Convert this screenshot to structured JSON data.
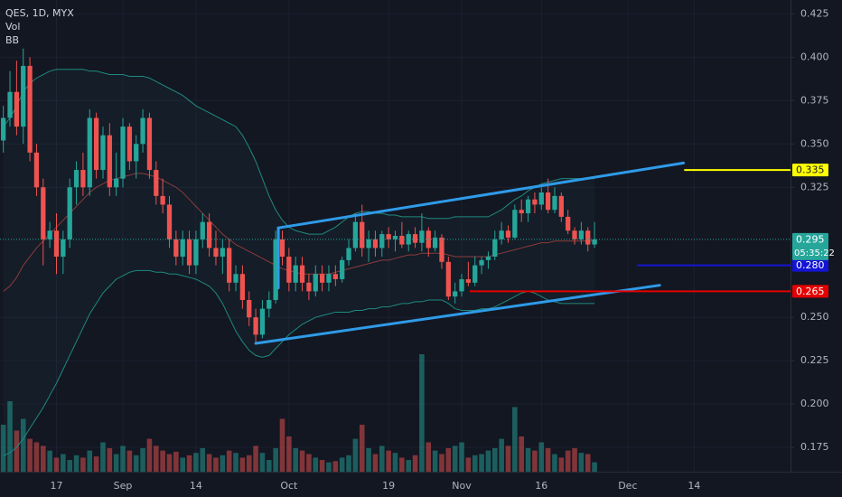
{
  "chart_data": {
    "type": "candlestick",
    "title": "QES, 1D, MYX",
    "indicators": [
      "Vol",
      "BB"
    ],
    "x": [
      0,
      1,
      2,
      3,
      4,
      5,
      6,
      7,
      8,
      9,
      10,
      11,
      12,
      13,
      14,
      15,
      16,
      17,
      18,
      19,
      20,
      21,
      22,
      23,
      24,
      25,
      26,
      27,
      28,
      29,
      30,
      31,
      32,
      33,
      34,
      35,
      36,
      37,
      38,
      39,
      40,
      41,
      42,
      43,
      44,
      45,
      46,
      47,
      48,
      49,
      50,
      51,
      52,
      53,
      54,
      55,
      56,
      57,
      58,
      59,
      60,
      61,
      62,
      63,
      64,
      65,
      66,
      67,
      68,
      69,
      70,
      71,
      72,
      73,
      74,
      75,
      76,
      77,
      78,
      79,
      80,
      81,
      82,
      83,
      84,
      85,
      86,
      87,
      88,
      89
    ],
    "open": [
      0.352,
      0.365,
      0.38,
      0.36,
      0.395,
      0.345,
      0.325,
      0.295,
      0.3,
      0.285,
      0.295,
      0.325,
      0.335,
      0.325,
      0.365,
      0.335,
      0.355,
      0.325,
      0.33,
      0.36,
      0.34,
      0.35,
      0.365,
      0.335,
      0.32,
      0.315,
      0.295,
      0.285,
      0.295,
      0.28,
      0.295,
      0.305,
      0.29,
      0.285,
      0.29,
      0.27,
      0.275,
      0.26,
      0.25,
      0.24,
      0.255,
      0.26,
      0.295,
      0.285,
      0.27,
      0.28,
      0.27,
      0.265,
      0.275,
      0.27,
      0.275,
      0.272,
      0.283,
      0.29,
      0.305,
      0.29,
      0.295,
      0.29,
      0.298,
      0.295,
      0.297,
      0.292,
      0.298,
      0.293,
      0.3,
      0.29,
      0.296,
      0.282,
      0.262,
      0.265,
      0.272,
      0.27,
      0.28,
      0.283,
      0.285,
      0.295,
      0.3,
      0.296,
      0.312,
      0.31,
      0.318,
      0.315,
      0.322,
      0.312,
      0.32,
      0.308,
      0.3,
      0.295,
      0.3,
      0.292
    ],
    "high": [
      0.372,
      0.392,
      0.398,
      0.405,
      0.4,
      0.35,
      0.33,
      0.305,
      0.31,
      0.3,
      0.33,
      0.34,
      0.345,
      0.37,
      0.368,
      0.36,
      0.362,
      0.345,
      0.365,
      0.362,
      0.355,
      0.37,
      0.368,
      0.34,
      0.33,
      0.32,
      0.3,
      0.3,
      0.3,
      0.3,
      0.31,
      0.31,
      0.3,
      0.295,
      0.295,
      0.28,
      0.28,
      0.265,
      0.255,
      0.26,
      0.265,
      0.3,
      0.3,
      0.29,
      0.285,
      0.285,
      0.275,
      0.28,
      0.28,
      0.28,
      0.28,
      0.285,
      0.295,
      0.31,
      0.315,
      0.3,
      0.3,
      0.3,
      0.302,
      0.3,
      0.305,
      0.3,
      0.302,
      0.31,
      0.302,
      0.3,
      0.298,
      0.285,
      0.27,
      0.275,
      0.282,
      0.285,
      0.285,
      0.288,
      0.3,
      0.305,
      0.303,
      0.315,
      0.318,
      0.32,
      0.322,
      0.325,
      0.33,
      0.325,
      0.322,
      0.312,
      0.302,
      0.305,
      0.302,
      0.305
    ],
    "low": [
      0.345,
      0.36,
      0.355,
      0.35,
      0.34,
      0.32,
      0.28,
      0.29,
      0.275,
      0.275,
      0.29,
      0.315,
      0.32,
      0.32,
      0.33,
      0.33,
      0.32,
      0.32,
      0.325,
      0.335,
      0.33,
      0.345,
      0.33,
      0.315,
      0.31,
      0.29,
      0.28,
      0.28,
      0.275,
      0.275,
      0.29,
      0.285,
      0.28,
      0.275,
      0.265,
      0.265,
      0.255,
      0.245,
      0.235,
      0.238,
      0.25,
      0.258,
      0.28,
      0.265,
      0.265,
      0.265,
      0.26,
      0.262,
      0.265,
      0.265,
      0.268,
      0.27,
      0.28,
      0.288,
      0.285,
      0.282,
      0.285,
      0.285,
      0.29,
      0.288,
      0.29,
      0.288,
      0.29,
      0.288,
      0.285,
      0.288,
      0.278,
      0.26,
      0.258,
      0.262,
      0.268,
      0.268,
      0.275,
      0.278,
      0.283,
      0.292,
      0.293,
      0.295,
      0.305,
      0.305,
      0.31,
      0.312,
      0.31,
      0.31,
      0.305,
      0.298,
      0.292,
      0.292,
      0.288,
      0.29
    ],
    "close": [
      0.365,
      0.38,
      0.36,
      0.395,
      0.345,
      0.325,
      0.295,
      0.3,
      0.285,
      0.295,
      0.325,
      0.335,
      0.325,
      0.365,
      0.335,
      0.355,
      0.325,
      0.33,
      0.36,
      0.34,
      0.35,
      0.365,
      0.335,
      0.32,
      0.315,
      0.295,
      0.285,
      0.295,
      0.28,
      0.295,
      0.305,
      0.29,
      0.285,
      0.29,
      0.27,
      0.275,
      0.26,
      0.25,
      0.24,
      0.255,
      0.26,
      0.295,
      0.285,
      0.27,
      0.28,
      0.27,
      0.265,
      0.275,
      0.27,
      0.275,
      0.272,
      0.283,
      0.29,
      0.305,
      0.29,
      0.295,
      0.29,
      0.298,
      0.295,
      0.297,
      0.292,
      0.298,
      0.293,
      0.3,
      0.29,
      0.296,
      0.282,
      0.262,
      0.265,
      0.272,
      0.27,
      0.28,
      0.283,
      0.285,
      0.295,
      0.3,
      0.296,
      0.312,
      0.31,
      0.318,
      0.315,
      0.322,
      0.312,
      0.32,
      0.308,
      0.3,
      0.295,
      0.3,
      0.292,
      0.295
    ],
    "volume": [
      40,
      60,
      35,
      45,
      28,
      25,
      22,
      18,
      12,
      15,
      10,
      14,
      12,
      18,
      13,
      25,
      20,
      15,
      22,
      18,
      14,
      20,
      28,
      22,
      18,
      15,
      17,
      12,
      14,
      16,
      20,
      15,
      12,
      14,
      18,
      16,
      12,
      14,
      22,
      16,
      10,
      20,
      45,
      30,
      20,
      18,
      15,
      12,
      10,
      8,
      9,
      12,
      14,
      28,
      40,
      20,
      15,
      22,
      18,
      16,
      12,
      10,
      14,
      100,
      25,
      18,
      15,
      20,
      22,
      25,
      12,
      14,
      15,
      18,
      20,
      28,
      22,
      55,
      30,
      20,
      18,
      25,
      20,
      15,
      12,
      18,
      20,
      16,
      15,
      8
    ],
    "bb_upper": [
      0.36,
      0.365,
      0.372,
      0.38,
      0.385,
      0.388,
      0.39,
      0.392,
      0.393,
      0.393,
      0.393,
      0.393,
      0.393,
      0.392,
      0.392,
      0.391,
      0.39,
      0.39,
      0.39,
      0.389,
      0.389,
      0.389,
      0.388,
      0.386,
      0.384,
      0.382,
      0.38,
      0.378,
      0.375,
      0.372,
      0.37,
      0.368,
      0.366,
      0.364,
      0.362,
      0.36,
      0.355,
      0.348,
      0.34,
      0.33,
      0.32,
      0.312,
      0.306,
      0.302,
      0.3,
      0.299,
      0.298,
      0.298,
      0.298,
      0.3,
      0.302,
      0.305,
      0.308,
      0.31,
      0.311,
      0.311,
      0.31,
      0.31,
      0.309,
      0.309,
      0.308,
      0.308,
      0.308,
      0.308,
      0.307,
      0.307,
      0.307,
      0.307,
      0.308,
      0.308,
      0.308,
      0.308,
      0.308,
      0.308,
      0.31,
      0.312,
      0.315,
      0.318,
      0.32,
      0.323,
      0.325,
      0.327,
      0.328,
      0.329,
      0.33,
      0.33,
      0.33,
      0.33,
      0.33,
      0.33
    ],
    "bb_basis": [
      0.265,
      0.268,
      0.273,
      0.28,
      0.285,
      0.29,
      0.294,
      0.298,
      0.302,
      0.306,
      0.31,
      0.314,
      0.318,
      0.322,
      0.325,
      0.327,
      0.329,
      0.33,
      0.331,
      0.332,
      0.333,
      0.333,
      0.332,
      0.331,
      0.329,
      0.327,
      0.325,
      0.322,
      0.318,
      0.314,
      0.31,
      0.306,
      0.302,
      0.298,
      0.295,
      0.292,
      0.29,
      0.288,
      0.286,
      0.284,
      0.282,
      0.28,
      0.278,
      0.277,
      0.276,
      0.275,
      0.275,
      0.275,
      0.275,
      0.275,
      0.276,
      0.277,
      0.278,
      0.279,
      0.28,
      0.281,
      0.282,
      0.283,
      0.283,
      0.284,
      0.285,
      0.286,
      0.286,
      0.287,
      0.287,
      0.287,
      0.287,
      0.286,
      0.285,
      0.285,
      0.285,
      0.285,
      0.285,
      0.285,
      0.286,
      0.287,
      0.288,
      0.289,
      0.29,
      0.291,
      0.292,
      0.293,
      0.293,
      0.294,
      0.294,
      0.294,
      0.294,
      0.294,
      0.294,
      0.294
    ],
    "bb_lower": [
      0.17,
      0.172,
      0.175,
      0.18,
      0.186,
      0.192,
      0.198,
      0.205,
      0.212,
      0.22,
      0.228,
      0.236,
      0.244,
      0.252,
      0.258,
      0.264,
      0.268,
      0.272,
      0.274,
      0.276,
      0.277,
      0.277,
      0.277,
      0.276,
      0.276,
      0.275,
      0.275,
      0.274,
      0.273,
      0.272,
      0.27,
      0.268,
      0.264,
      0.258,
      0.25,
      0.242,
      0.236,
      0.231,
      0.228,
      0.227,
      0.228,
      0.232,
      0.236,
      0.24,
      0.243,
      0.246,
      0.248,
      0.25,
      0.251,
      0.252,
      0.253,
      0.253,
      0.253,
      0.254,
      0.254,
      0.255,
      0.255,
      0.256,
      0.256,
      0.257,
      0.258,
      0.258,
      0.259,
      0.259,
      0.26,
      0.26,
      0.26,
      0.258,
      0.255,
      0.254,
      0.254,
      0.254,
      0.255,
      0.255,
      0.256,
      0.258,
      0.26,
      0.262,
      0.264,
      0.265,
      0.264,
      0.262,
      0.26,
      0.259,
      0.258,
      0.258,
      0.258,
      0.258,
      0.258,
      0.258
    ],
    "up_color": "#26a69a",
    "down_color": "#ef5350",
    "xlim": [
      -0.5,
      118.5
    ],
    "xticks": [
      {
        "value": 8,
        "label": "17"
      },
      {
        "value": 18,
        "label": "Sep"
      },
      {
        "value": 29,
        "label": "14"
      },
      {
        "value": 43,
        "label": "Oct"
      },
      {
        "value": 58,
        "label": "19"
      },
      {
        "value": 69,
        "label": "Nov"
      },
      {
        "value": 81,
        "label": "16"
      },
      {
        "value": 94,
        "label": "Dec"
      },
      {
        "value": 104,
        "label": "14"
      }
    ],
    "ylim": [
      0.161,
      0.433
    ],
    "yticks": [
      {
        "value": 0.425,
        "label": "0.425"
      },
      {
        "value": 0.4,
        "label": "0.400"
      },
      {
        "value": 0.375,
        "label": "0.375"
      },
      {
        "value": 0.35,
        "label": "0.350"
      },
      {
        "value": 0.325,
        "label": "0.325"
      },
      {
        "value": 0.25,
        "label": "0.250"
      },
      {
        "value": 0.225,
        "label": "0.225"
      },
      {
        "value": 0.2,
        "label": "0.200"
      },
      {
        "value": 0.175,
        "label": "0.175"
      }
    ],
    "trendlines": [
      {
        "x": [
          41.4,
          102.4
        ],
        "y": [
          0.3016,
          0.339
        ],
        "color": "#2f9be8"
      },
      {
        "x": [
          38,
          98.8
        ],
        "y": [
          0.235,
          0.2685
        ],
        "color": "#2f9be8"
      },
      {
        "x": [
          41.4,
          41.4
        ],
        "y": [
          0.3016,
          0.267
        ],
        "color": "#2f9be8"
      }
    ],
    "hlines": [
      {
        "value": 0.335,
        "label": "0.335",
        "start": 102.5,
        "color": "#ffff00",
        "text_color": "#131722"
      },
      {
        "value": 0.28,
        "label": "0.280",
        "start": 95.4,
        "color": "#1414d6",
        "text_color": "#ffffff"
      },
      {
        "value": 0.265,
        "label": "0.265",
        "start": 70.2,
        "color": "#e50000",
        "text_color": "#ffffff"
      }
    ],
    "last_price": {
      "value": 0.295,
      "label": "0.295",
      "color": "#26a69a",
      "countdown": "05:35:22"
    }
  }
}
